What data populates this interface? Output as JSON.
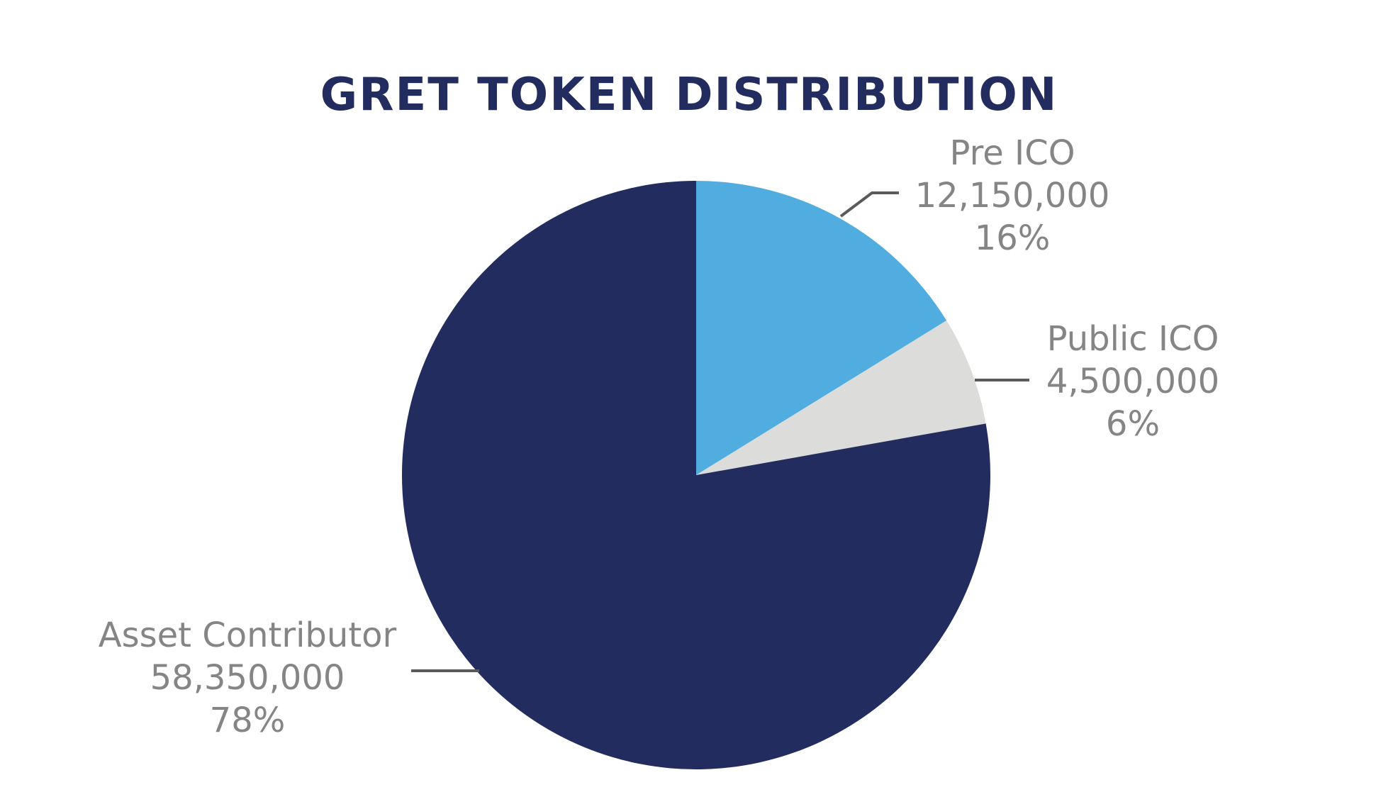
{
  "chart_data": {
    "type": "pie",
    "title": "GRET TOKEN DISTRIBUTION",
    "start_angle": "12 o'clock",
    "direction": "clockwise",
    "slices": [
      {
        "name": "Pre ICO",
        "value": 12150000,
        "value_label": "12,150,000",
        "percent_label": "16%",
        "color": "#51ade0"
      },
      {
        "name": "Public ICO",
        "value": 4500000,
        "value_label": "4,500,000",
        "percent_label": "6%",
        "color": "#dcdcdb"
      },
      {
        "name": "Asset Contributor",
        "value": 58350000,
        "value_label": "58,350,000",
        "percent_label": "78%",
        "color": "#222c5e"
      }
    ]
  },
  "colors": {
    "title": "#222c5e",
    "label_text": "#858585",
    "leader_line": "#5a5a5a",
    "background": "#ffffff"
  }
}
